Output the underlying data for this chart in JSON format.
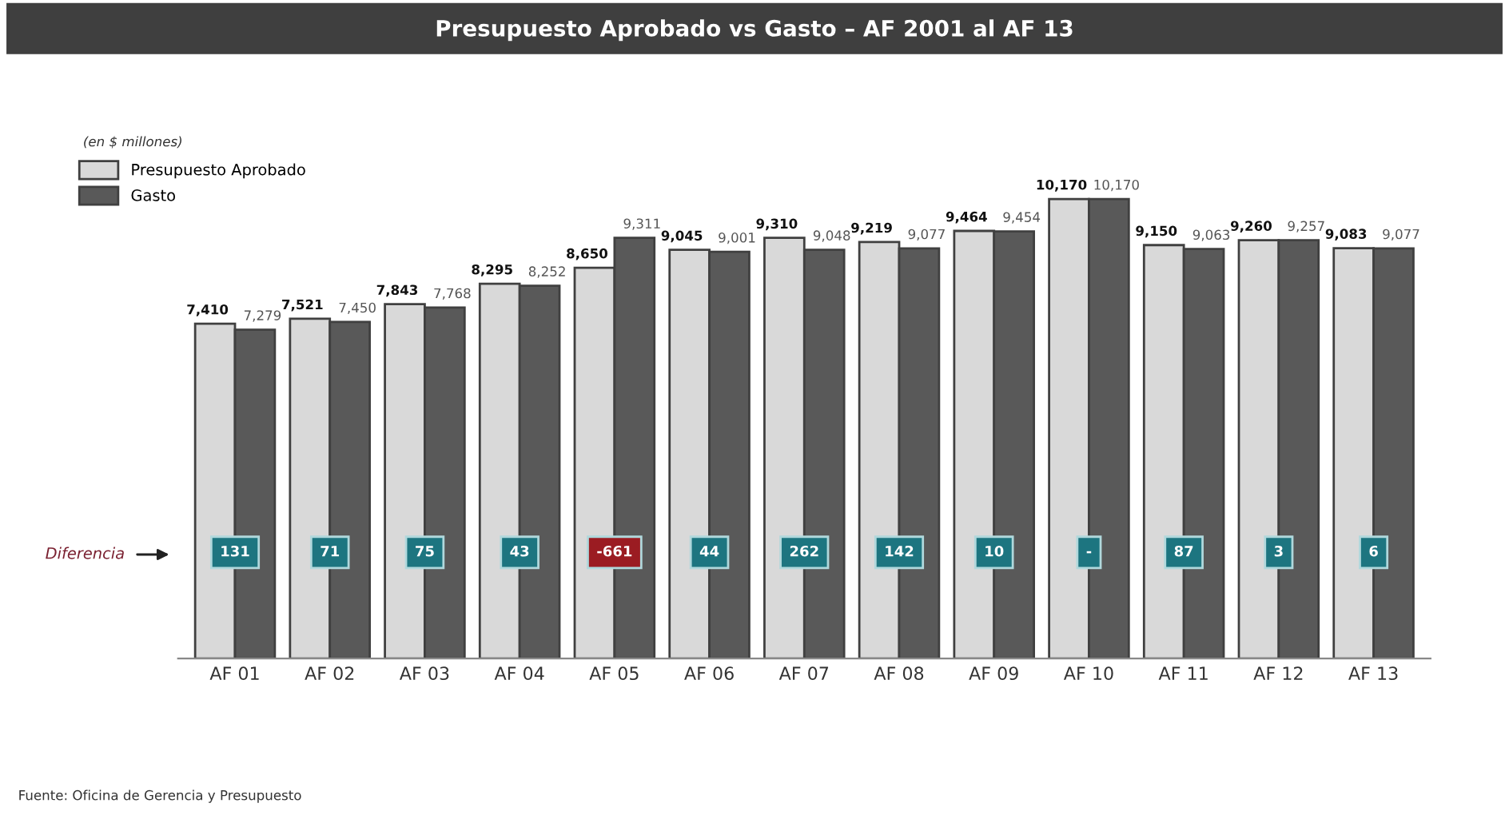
{
  "chart_data": {
    "type": "bar",
    "title": "Presupuesto Aprobado vs Gasto – AF 2001 al AF 13",
    "subtitle": "(en $ millones)",
    "categories": [
      "AF 01",
      "AF 02",
      "AF 03",
      "AF 04",
      "AF 05",
      "AF 06",
      "AF 07",
      "AF 08",
      "AF 09",
      "AF 10",
      "AF 11",
      "AF 12",
      "AF 13"
    ],
    "series": [
      {
        "name": "Presupuesto Aprobado",
        "color": "#d9d9d9",
        "values": [
          7410,
          7521,
          7843,
          8295,
          8650,
          9045,
          9310,
          9219,
          9464,
          10170,
          9150,
          9260,
          9083
        ],
        "value_labels": [
          "7,410",
          "7,521",
          "7,843",
          "8,295",
          "8,650",
          "9,045",
          "9,310",
          "9,219",
          "9,464",
          "10,170",
          "9,150",
          "9,260",
          "9,083"
        ]
      },
      {
        "name": "Gasto",
        "color": "#595959",
        "values": [
          7279,
          7450,
          7768,
          8252,
          9311,
          9001,
          9048,
          9077,
          9454,
          10170,
          9063,
          9257,
          9077
        ],
        "value_labels": [
          "7,279",
          "7,450",
          "7,768",
          "8,252",
          "9,311",
          "9,001",
          "9,048",
          "9,077",
          "9,454",
          "10,170",
          "9,063",
          "9,257",
          "9,077"
        ]
      }
    ],
    "tick_labels": "x",
    "legend": "top left",
    "grid": false,
    "annotations": [
      "Diferencia",
      "131",
      "71",
      "75",
      "43",
      "-661",
      "44",
      "262",
      "142",
      "10",
      "-",
      "87",
      "3",
      "6",
      "Fuente: Oficina de Gerencia y Presupuesto"
    ]
  }
}
